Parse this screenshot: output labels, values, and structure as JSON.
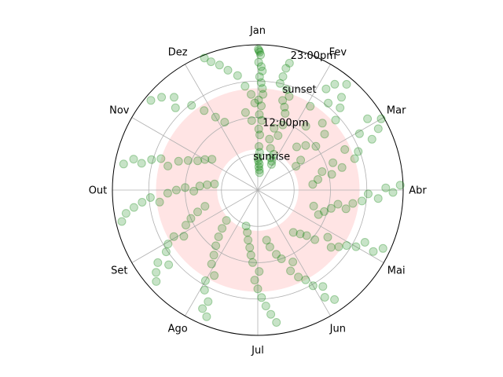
{
  "chart_data": {
    "type": "scatter",
    "projection": "polar",
    "title": "",
    "angular_ticks": [
      "Jan",
      "Fev",
      "Mar",
      "Abr",
      "Mai",
      "Jun",
      "Jul",
      "Ago",
      "Set",
      "Out",
      "Nov",
      "Dez"
    ],
    "radial_ticks": [
      "sunrise",
      "12:00pm",
      "sunset",
      "23:00pm"
    ],
    "radial_tick_values": [
      0.25,
      0.5,
      0.75,
      1.0
    ],
    "radial_range": [
      0,
      1
    ],
    "grid": true,
    "shaded_band": {
      "r_inner": 0.28,
      "r_outer": 0.7,
      "color": "#ffe4e4",
      "angle_start_deg": 0,
      "angle_end_deg": 360
    },
    "point_color": "#008000",
    "point_alpha": 0.22,
    "series": [
      {
        "points": [
          [
            0.2,
            0.97
          ],
          [
            0.5,
            0.96
          ],
          [
            0.8,
            0.95
          ],
          [
            1.2,
            0.93
          ],
          [
            0.4,
            0.88
          ],
          [
            1.6,
            0.85
          ],
          [
            2.2,
            0.82
          ],
          [
            0.9,
            0.78
          ],
          [
            1.8,
            0.74
          ],
          [
            2.6,
            0.7
          ],
          [
            3.1,
            0.66
          ],
          [
            0.5,
            0.62
          ],
          [
            2.4,
            0.58
          ],
          [
            1.2,
            0.52
          ],
          [
            3.3,
            0.48
          ],
          [
            0.9,
            0.42
          ],
          [
            2.0,
            0.38
          ],
          [
            1.5,
            0.3
          ],
          [
            2.8,
            0.26
          ],
          [
            0.3,
            0.22
          ],
          [
            1.1,
            0.2
          ],
          [
            3.5,
            0.18
          ],
          [
            2.4,
            0.16
          ],
          [
            4.4,
            0.14
          ],
          [
            5.8,
            0.12
          ],
          [
            14.0,
            0.9
          ],
          [
            13.0,
            0.86
          ],
          [
            12.5,
            0.8
          ],
          [
            11.8,
            0.75
          ],
          [
            16.0,
            0.72
          ],
          [
            18.5,
            0.68
          ],
          [
            15.5,
            0.64
          ],
          [
            17.8,
            0.6
          ],
          [
            19.6,
            0.56
          ],
          [
            21.0,
            0.48
          ],
          [
            14.8,
            0.44
          ],
          [
            20.4,
            0.4
          ],
          [
            12.8,
            0.36
          ],
          [
            17.0,
            0.3
          ],
          [
            24.0,
            0.27
          ],
          [
            22.0,
            0.24
          ],
          [
            26.0,
            0.22
          ],
          [
            28.0,
            0.2
          ],
          [
            40.0,
            0.95
          ],
          [
            36.0,
            0.9
          ],
          [
            42.0,
            0.86
          ],
          [
            34.0,
            0.84
          ],
          [
            45.0,
            0.8
          ],
          [
            39.0,
            0.77
          ],
          [
            48.0,
            0.72
          ],
          [
            32.0,
            0.68
          ],
          [
            44.0,
            0.64
          ],
          [
            50.0,
            0.6
          ],
          [
            37.0,
            0.55
          ],
          [
            53.0,
            0.5
          ],
          [
            47.0,
            0.45
          ],
          [
            42.0,
            0.4
          ],
          [
            55.0,
            0.36
          ],
          [
            58.0,
            0.31
          ],
          [
            60.0,
            0.98
          ],
          [
            63.0,
            0.93
          ],
          [
            57.0,
            0.9
          ],
          [
            66.0,
            0.86
          ],
          [
            61.0,
            0.8
          ],
          [
            69.0,
            0.74
          ],
          [
            72.0,
            0.7
          ],
          [
            65.0,
            0.66
          ],
          [
            75.0,
            0.6
          ],
          [
            70.0,
            0.55
          ],
          [
            78.0,
            0.52
          ],
          [
            74.0,
            0.46
          ],
          [
            80.0,
            0.42
          ],
          [
            84.0,
            0.38
          ],
          [
            88.0,
            0.98
          ],
          [
            91.0,
            0.93
          ],
          [
            89.0,
            0.88
          ],
          [
            94.0,
            0.83
          ],
          [
            92.0,
            0.76
          ],
          [
            96.0,
            0.72
          ],
          [
            98.0,
            0.66
          ],
          [
            102.0,
            0.62
          ],
          [
            100.0,
            0.56
          ],
          [
            104.0,
            0.52
          ],
          [
            108.0,
            0.48
          ],
          [
            112.0,
            0.45
          ],
          [
            106.0,
            0.4
          ],
          [
            115.0,
            0.95
          ],
          [
            118.0,
            0.9
          ],
          [
            116.0,
            0.82
          ],
          [
            120.0,
            0.78
          ],
          [
            122.0,
            0.72
          ],
          [
            125.0,
            0.68
          ],
          [
            128.0,
            0.64
          ],
          [
            124.0,
            0.58
          ],
          [
            131.0,
            0.52
          ],
          [
            133.0,
            0.46
          ],
          [
            136.0,
            0.42
          ],
          [
            140.0,
            0.38
          ],
          [
            145.0,
            0.92
          ],
          [
            148.0,
            0.87
          ],
          [
            146.0,
            0.8
          ],
          [
            150.0,
            0.76
          ],
          [
            152.0,
            0.7
          ],
          [
            155.0,
            0.66
          ],
          [
            158.0,
            0.6
          ],
          [
            154.0,
            0.55
          ],
          [
            161.0,
            0.5
          ],
          [
            164.0,
            0.46
          ],
          [
            168.0,
            0.4
          ],
          [
            170.0,
            0.35
          ],
          [
            172.0,
            0.92
          ],
          [
            174.0,
            0.86
          ],
          [
            176.0,
            0.8
          ],
          [
            178.0,
            0.74
          ],
          [
            180.0,
            0.68
          ],
          [
            182.0,
            0.62
          ],
          [
            179.0,
            0.56
          ],
          [
            184.0,
            0.5
          ],
          [
            186.0,
            0.45
          ],
          [
            188.0,
            0.4
          ],
          [
            191.0,
            0.35
          ],
          [
            194.0,
            0.3
          ],
          [
            198.0,
            0.26
          ],
          [
            202.0,
            0.94
          ],
          [
            205.0,
            0.9
          ],
          [
            204.0,
            0.84
          ],
          [
            208.0,
            0.78
          ],
          [
            210.0,
            0.72
          ],
          [
            207.0,
            0.66
          ],
          [
            212.0,
            0.6
          ],
          [
            214.0,
            0.54
          ],
          [
            217.0,
            0.48
          ],
          [
            220.0,
            0.42
          ],
          [
            223.0,
            0.36
          ],
          [
            226.0,
            0.3
          ],
          [
            228.0,
            0.94
          ],
          [
            231.0,
            0.9
          ],
          [
            234.0,
            0.85
          ],
          [
            230.0,
            0.8
          ],
          [
            236.0,
            0.76
          ],
          [
            239.0,
            0.72
          ],
          [
            241.0,
            0.66
          ],
          [
            238.0,
            0.6
          ],
          [
            244.0,
            0.55
          ],
          [
            247.0,
            0.5
          ],
          [
            250.0,
            0.44
          ],
          [
            253.0,
            0.38
          ],
          [
            257.0,
            0.96
          ],
          [
            260.0,
            0.92
          ],
          [
            262.0,
            0.86
          ],
          [
            264.0,
            0.8
          ],
          [
            266.0,
            0.74
          ],
          [
            263.0,
            0.68
          ],
          [
            268.0,
            0.62
          ],
          [
            270.0,
            0.56
          ],
          [
            272.0,
            0.5
          ],
          [
            269.0,
            0.44
          ],
          [
            274.0,
            0.4
          ],
          [
            276.0,
            0.35
          ],
          [
            278.0,
            0.3
          ],
          [
            281.0,
            0.94
          ],
          [
            284.0,
            0.88
          ],
          [
            283.0,
            0.82
          ],
          [
            286.0,
            0.76
          ],
          [
            288.0,
            0.7
          ],
          [
            285.0,
            0.64
          ],
          [
            290.0,
            0.58
          ],
          [
            293.0,
            0.52
          ],
          [
            296.0,
            0.46
          ],
          [
            300.0,
            0.42
          ],
          [
            304.0,
            0.38
          ],
          [
            310.0,
            0.96
          ],
          [
            314.0,
            0.92
          ],
          [
            318.0,
            0.86
          ],
          [
            315.0,
            0.8
          ],
          [
            322.0,
            0.74
          ],
          [
            326.0,
            0.66
          ],
          [
            330.0,
            0.58
          ],
          [
            334.0,
            0.52
          ],
          [
            338.0,
            0.98
          ],
          [
            340.0,
            0.94
          ],
          [
            343.0,
            0.9
          ],
          [
            346.0,
            0.85
          ],
          [
            350.0,
            0.8
          ],
          [
            353.0,
            0.72
          ],
          [
            356.0,
            0.66
          ],
          [
            358.0,
            0.6
          ],
          [
            351.0,
            0.54
          ],
          [
            355.0,
            0.48
          ]
        ]
      }
    ]
  }
}
